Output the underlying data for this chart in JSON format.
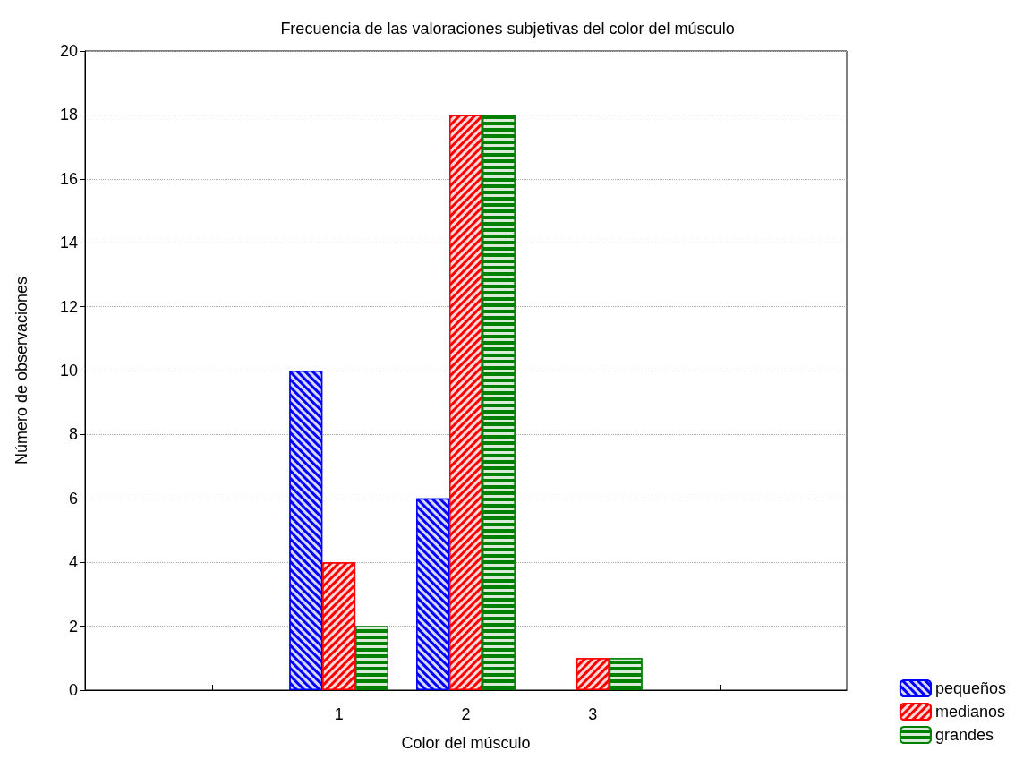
{
  "chart_data": {
    "type": "bar",
    "title": "Frecuencia de las valoraciones subjetivas del color del músculo",
    "xlabel": "Color del músculo",
    "ylabel": "Número de observaciones",
    "x": [
      1,
      2,
      3
    ],
    "xlim": [
      -1,
      5
    ],
    "xticks": [
      {
        "value": 0,
        "label": null
      },
      1,
      2,
      3,
      {
        "value": 4,
        "label": null
      }
    ],
    "ylim": [
      0,
      20
    ],
    "yticks": [
      0,
      2,
      4,
      6,
      8,
      10,
      12,
      14,
      16,
      18,
      20
    ],
    "series": [
      {
        "name": "pequeños",
        "color": "#0000ff",
        "values": [
          10,
          6,
          null
        ]
      },
      {
        "name": "medianos",
        "color": "#ff0000",
        "values": [
          4,
          18,
          1
        ]
      },
      {
        "name": "grandes",
        "color": "#008000",
        "values": [
          2,
          18,
          1
        ]
      }
    ],
    "grid": "y",
    "legend": "bottom right"
  }
}
